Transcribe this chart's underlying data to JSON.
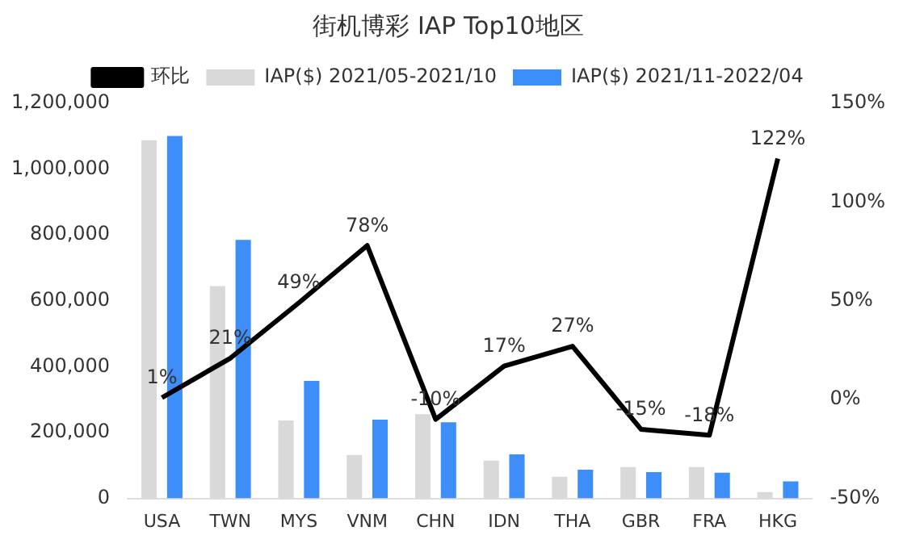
{
  "chart_data": {
    "type": "bar",
    "title": "街机博彩 IAP Top10地区",
    "categories": [
      "USA",
      "TWN",
      "MYS",
      "VNM",
      "CHN",
      "IDN",
      "THA",
      "GBR",
      "FRA",
      "HKG"
    ],
    "series": [
      {
        "name": "IAP($) 2021/05-2021/10",
        "color": "#d9d9d9",
        "values": [
          1088000,
          645000,
          237000,
          132000,
          256000,
          115000,
          66000,
          95000,
          95000,
          19000
        ]
      },
      {
        "name": "IAP($) 2021/11-2022/04",
        "color": "#3d8ef8",
        "values": [
          1101000,
          785000,
          357000,
          239000,
          231000,
          134000,
          87000,
          80000,
          78000,
          52000
        ]
      },
      {
        "name": "环比",
        "type": "line",
        "axis": "y2",
        "color": "#000000",
        "marker": "none",
        "values": [
          1,
          21,
          49,
          78,
          -10,
          17,
          27,
          -15,
          -18,
          122
        ],
        "value_labels": [
          "1%",
          "21%",
          "49%",
          "78%",
          "-10%",
          "17%",
          "27%",
          "-15%",
          "-18%",
          "122%"
        ]
      }
    ],
    "ylim": [
      0,
      1200000
    ],
    "yticks": [
      {
        "value": 0,
        "label": "0"
      },
      {
        "value": 200000,
        "label": "200,000"
      },
      {
        "value": 400000,
        "label": "400,000"
      },
      {
        "value": 600000,
        "label": "600,000"
      },
      {
        "value": 800000,
        "label": "800,000"
      },
      {
        "value": 1000000,
        "label": "1,000,000"
      },
      {
        "value": 1200000,
        "label": "1,200,000"
      }
    ],
    "y2lim": [
      -50,
      150
    ],
    "y2ticks": [
      {
        "value": -50,
        "label": "-50%"
      },
      {
        "value": 0,
        "label": "0%"
      },
      {
        "value": 50,
        "label": "50%"
      },
      {
        "value": 100,
        "label": "100%"
      },
      {
        "value": 150,
        "label": "150%"
      }
    ],
    "grid": false,
    "legend": "top"
  }
}
